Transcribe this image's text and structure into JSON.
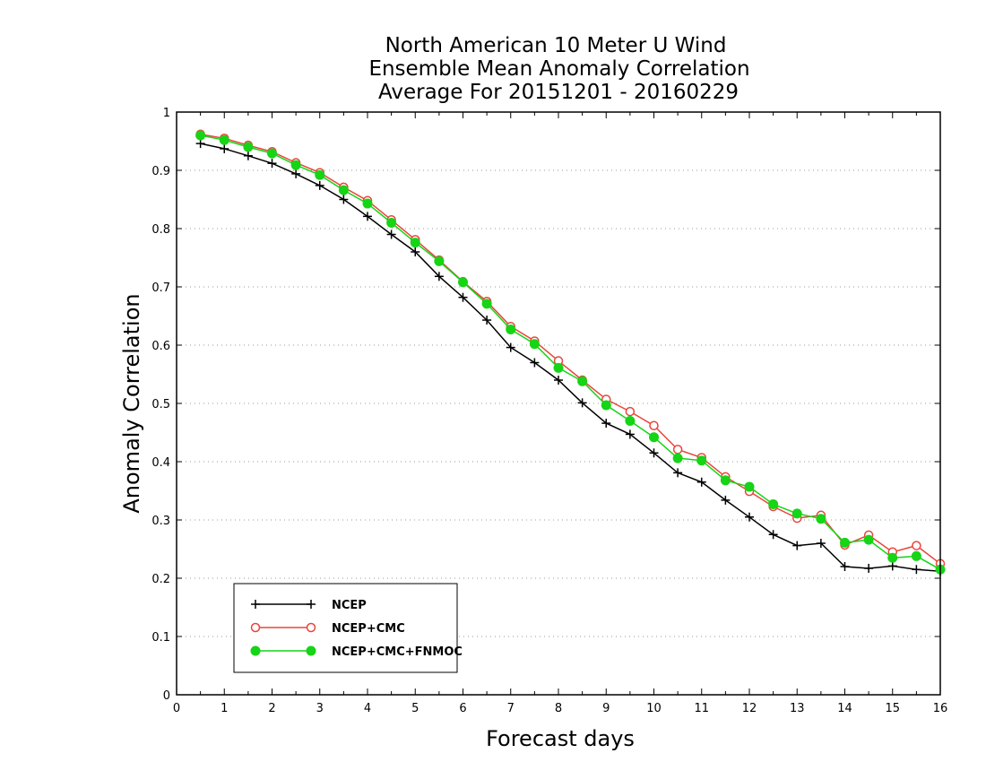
{
  "chart_data": {
    "type": "line",
    "title": [
      "North American 10 Meter U Wind",
      "Ensemble Mean Anomaly Correlation",
      "Average For 20151201 - 20160229"
    ],
    "xlabel": "Forecast days",
    "ylabel": "Anomaly Correlation",
    "xlim": [
      0,
      16
    ],
    "ylim": [
      0,
      1
    ],
    "xticks": [
      0,
      1,
      2,
      3,
      4,
      5,
      6,
      7,
      8,
      9,
      10,
      11,
      12,
      13,
      14,
      15,
      16
    ],
    "yticks": [
      0,
      0.1,
      0.2,
      0.3,
      0.4,
      0.5,
      0.6,
      0.7,
      0.8,
      0.9,
      1
    ],
    "xtick_labels": [
      "0",
      "1",
      "2",
      "3",
      "4",
      "5",
      "6",
      "7",
      "8",
      "9",
      "10",
      "11",
      "12",
      "13",
      "14",
      "15",
      "16"
    ],
    "ytick_labels": [
      "0",
      "0.1",
      "0.2",
      "0.3",
      "0.4",
      "0.5",
      "0.6",
      "0.7",
      "0.8",
      "0.9",
      "1"
    ],
    "grid": "horizontal dotted",
    "legend_position": "bottom-left",
    "x": [
      0.5,
      1,
      1.5,
      2,
      2.5,
      3,
      3.5,
      4,
      4.5,
      5,
      5.5,
      6,
      6.5,
      7,
      7.5,
      8,
      8.5,
      9,
      9.5,
      10,
      10.5,
      11,
      11.5,
      12,
      12.5,
      13,
      13.5,
      14,
      14.5,
      15,
      15.5,
      16
    ],
    "series": [
      {
        "name": "NCEP",
        "color": "#000000",
        "marker": "plus",
        "values": [
          0.946,
          0.937,
          0.925,
          0.912,
          0.894,
          0.874,
          0.85,
          0.821,
          0.79,
          0.76,
          0.718,
          0.682,
          0.643,
          0.596,
          0.57,
          0.54,
          0.501,
          0.466,
          0.447,
          0.415,
          0.381,
          0.365,
          0.334,
          0.305,
          0.275,
          0.256,
          0.26,
          0.22,
          0.217,
          0.221,
          0.215,
          0.212
        ]
      },
      {
        "name": "NCEP+CMC",
        "color": "#e8453c",
        "marker": "open-circle",
        "values": [
          0.962,
          0.955,
          0.943,
          0.932,
          0.913,
          0.896,
          0.871,
          0.848,
          0.815,
          0.781,
          0.746,
          0.709,
          0.675,
          0.632,
          0.607,
          0.573,
          0.54,
          0.507,
          0.486,
          0.462,
          0.421,
          0.407,
          0.374,
          0.349,
          0.323,
          0.303,
          0.308,
          0.257,
          0.274,
          0.245,
          0.256,
          0.225
        ]
      },
      {
        "name": "NCEP+CMC+FNMOC",
        "color": "#16d416",
        "marker": "filled-circle",
        "values": [
          0.96,
          0.952,
          0.94,
          0.929,
          0.909,
          0.892,
          0.866,
          0.843,
          0.81,
          0.776,
          0.744,
          0.708,
          0.671,
          0.627,
          0.602,
          0.561,
          0.538,
          0.497,
          0.47,
          0.442,
          0.406,
          0.402,
          0.368,
          0.357,
          0.327,
          0.311,
          0.302,
          0.261,
          0.266,
          0.235,
          0.238,
          0.215
        ]
      }
    ]
  }
}
